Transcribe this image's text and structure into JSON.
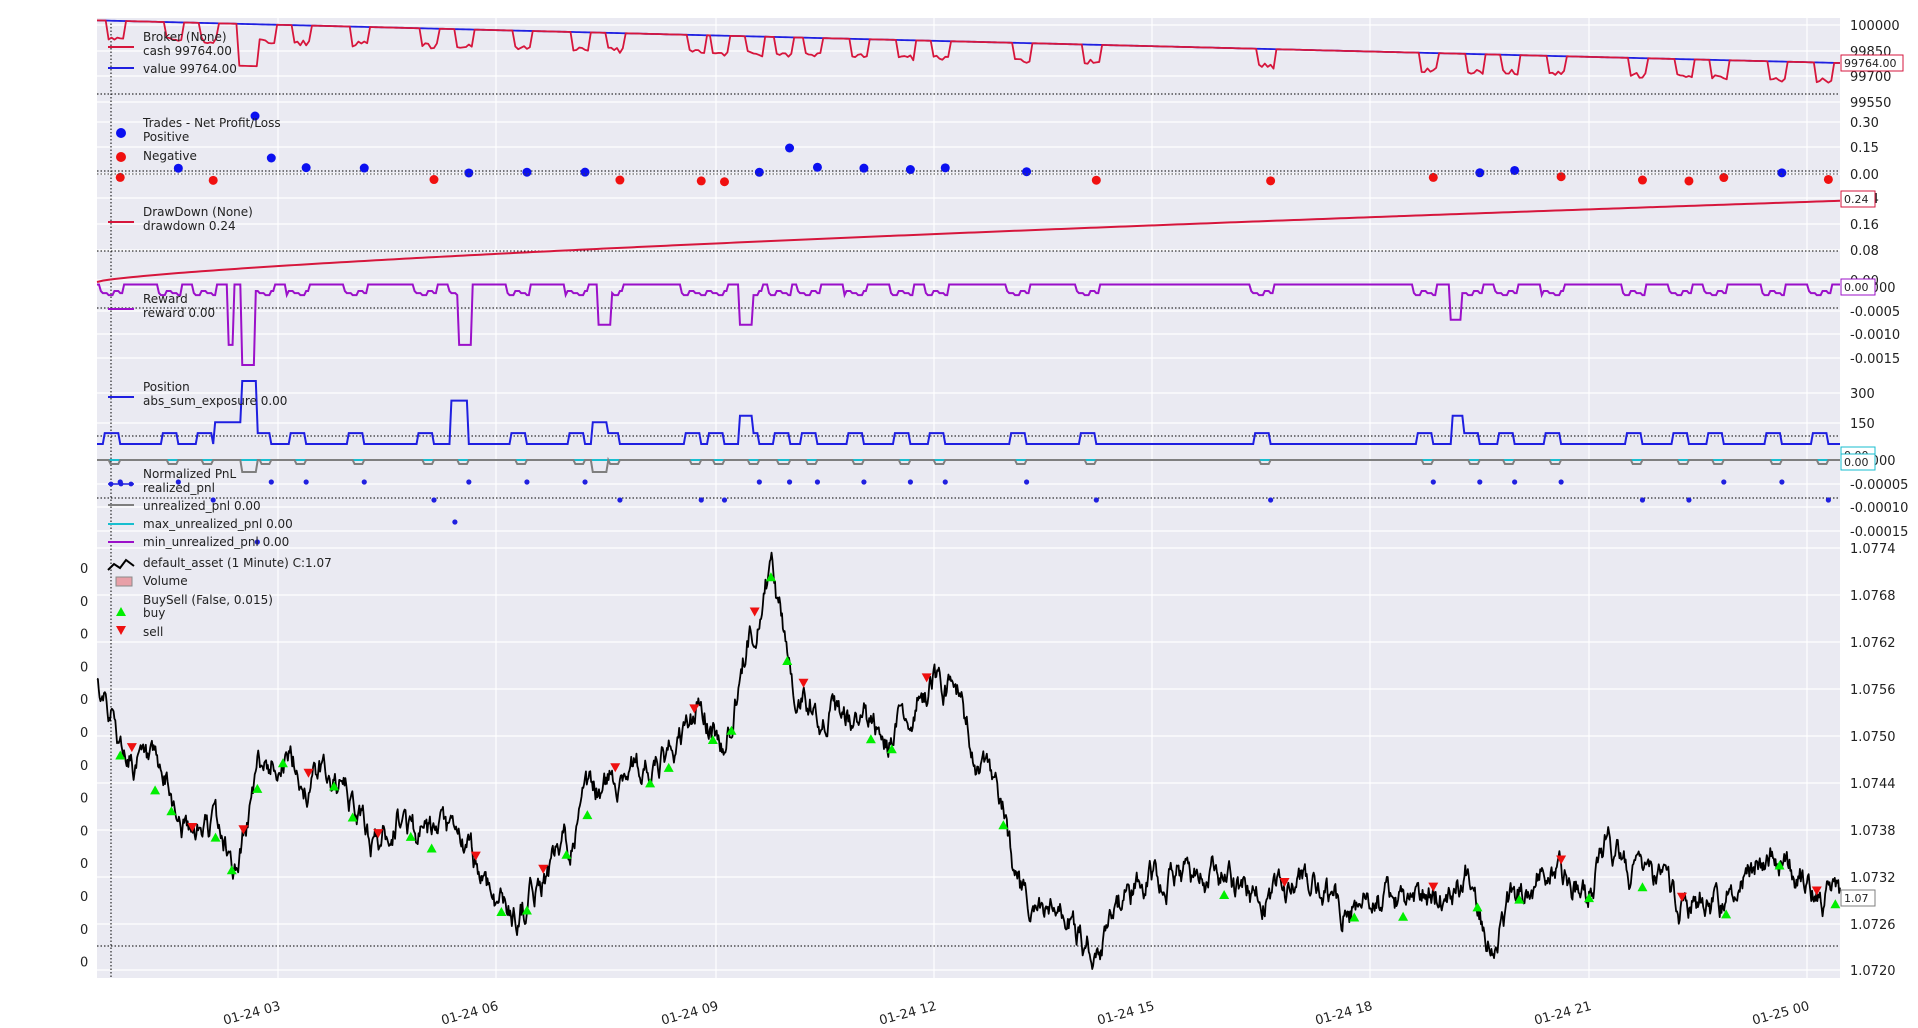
{
  "chart_data": {
    "type": "line",
    "x_ticks": [
      "01-24 03",
      "01-24 06",
      "01-24 09",
      "01-24 12",
      "01-24 15",
      "01-24 18",
      "01-24 21",
      "01-25 00"
    ],
    "panels": [
      {
        "id": "broker",
        "legend_title": "Broker (None)",
        "series": [
          {
            "name": "cash 99764.00",
            "color": "#d6163c",
            "last": 99764.0
          },
          {
            "name": "value 99764.00",
            "color": "#1f1fe0",
            "last": 99764.0
          }
        ],
        "yticks": [
          "100000",
          "99850",
          "99700",
          "99550"
        ],
        "ylim": [
          99550,
          100000
        ],
        "last_label": "99764.00"
      },
      {
        "id": "trades",
        "legend_title": "Trades - Net Profit/Loss",
        "series": [
          {
            "name": "Positive",
            "color": "#0b10f0"
          },
          {
            "name": "Negative",
            "color": "#f01010"
          }
        ],
        "yticks": [
          "0.30",
          "0.15",
          "0.00"
        ],
        "ylim": [
          -0.06,
          0.32
        ]
      },
      {
        "id": "drawdown",
        "legend_title": "DrawDown (None)",
        "series": [
          {
            "name": "drawdown 0.24",
            "color": "#d6163c",
            "last": 0.24
          }
        ],
        "yticks": [
          "0.24",
          "0.16",
          "0.08",
          "0.00"
        ],
        "ylim": [
          0,
          0.26
        ],
        "last_label": "0.24"
      },
      {
        "id": "reward",
        "legend_title": "Reward",
        "series": [
          {
            "name": "reward 0.00",
            "color": "#9b10c9",
            "last": 0.0
          }
        ],
        "yticks": [
          "0.0000",
          "-0.0005",
          "-0.0010",
          "-0.0015"
        ],
        "ylim": [
          -0.0017,
          5e-05
        ],
        "last_label": "0.00"
      },
      {
        "id": "position",
        "legend_title": "Position",
        "series": [
          {
            "name": "abs_sum_exposure 0.00",
            "color": "#1f1fe0",
            "last": 0.0
          }
        ],
        "yticks": [
          "300",
          "150"
        ],
        "ylim": [
          0,
          350
        ],
        "last_label": "0.00"
      },
      {
        "id": "pnl",
        "legend_title": "Normalized PnL",
        "series": [
          {
            "name": "realized_pnl",
            "color": "#1f1fe0"
          },
          {
            "name": "unrealized_pnl 0.00",
            "color": "#7f7f7f"
          },
          {
            "name": "max_unrealized_pnl 0.00",
            "color": "#17becf"
          },
          {
            "name": "min_unrealized_pnl 0.00",
            "color": "#9b10c9"
          }
        ],
        "yticks": [
          "0.0000",
          "-0.00005",
          "-0.00010",
          "-0.00015"
        ],
        "ylim": [
          -0.00017,
          1e-05
        ],
        "last_label": "0.00"
      },
      {
        "id": "price",
        "legend_title": "default_asset (1 Minute) C:1.07",
        "series": [
          {
            "name": "Volume",
            "color": "#e8a0a8"
          },
          {
            "name": "BuySell (False, 0.015)",
            "color": "#000000"
          },
          {
            "name": "buy",
            "color": "#00ee00"
          },
          {
            "name": "sell",
            "color": "#ee1010"
          }
        ],
        "yticks": [
          "1.0774",
          "1.0768",
          "1.0762",
          "1.0756",
          "1.0750",
          "1.0744",
          "1.0738",
          "1.0732",
          "1.0726",
          "1.0720"
        ],
        "left_ticks": [
          "0",
          "0",
          "0",
          "0",
          "0",
          "0",
          "0",
          "0",
          "0",
          "0",
          "0",
          "0",
          "0"
        ],
        "ylim": [
          1.0719,
          1.0775
        ],
        "close": 1.07,
        "last_label": "1.07",
        "price_knots": [
          [
            0,
            1.0757
          ],
          [
            0.3,
            1.0758
          ],
          [
            1,
            1.0749
          ],
          [
            2,
            1.0746
          ],
          [
            3,
            1.0743
          ],
          [
            4,
            1.0737
          ],
          [
            5,
            1.0739
          ],
          [
            6,
            1.0733
          ],
          [
            7,
            1.0746
          ],
          [
            8,
            1.0748
          ],
          [
            9,
            1.0744
          ],
          [
            10,
            1.0746
          ],
          [
            11,
            1.0741
          ],
          [
            12,
            1.0736
          ],
          [
            13,
            1.074
          ],
          [
            14,
            1.0737
          ],
          [
            15,
            1.0737
          ],
          [
            16,
            1.0735
          ],
          [
            17,
            1.073
          ],
          [
            18,
            1.0727
          ],
          [
            19,
            1.0731
          ],
          [
            20,
            1.0735
          ],
          [
            21,
            1.0741
          ],
          [
            22,
            1.0744
          ],
          [
            23,
            1.0747
          ],
          [
            24,
            1.0745
          ],
          [
            25,
            1.0749
          ],
          [
            26,
            1.0754
          ],
          [
            27,
            1.0748
          ],
          [
            28,
            1.0762
          ],
          [
            29,
            1.0772
          ],
          [
            29.5,
            1.0764
          ],
          [
            30,
            1.0757
          ],
          [
            31,
            1.0754
          ],
          [
            32,
            1.0752
          ],
          [
            33,
            1.0752
          ],
          [
            34,
            1.0749
          ],
          [
            35,
            1.0753
          ],
          [
            36,
            1.0758
          ],
          [
            37,
            1.0756
          ],
          [
            38,
            1.0746
          ],
          [
            39,
            1.074
          ],
          [
            40,
            1.0727
          ],
          [
            41,
            1.0727
          ],
          [
            42,
            1.0726
          ],
          [
            43,
            1.0722
          ],
          [
            44,
            1.0728
          ],
          [
            45,
            1.0732
          ],
          [
            46,
            1.0732
          ],
          [
            47,
            1.0732
          ],
          [
            48,
            1.0732
          ],
          [
            49,
            1.073
          ],
          [
            50,
            1.073
          ],
          [
            51,
            1.073
          ],
          [
            52,
            1.0731
          ],
          [
            53,
            1.0729
          ],
          [
            54,
            1.0728
          ],
          [
            55,
            1.0729
          ],
          [
            56,
            1.0728
          ],
          [
            57,
            1.0729
          ],
          [
            58,
            1.073
          ],
          [
            59,
            1.0733
          ],
          [
            60,
            1.0724
          ],
          [
            61,
            1.073
          ],
          [
            62,
            1.0732
          ],
          [
            63,
            1.0733
          ],
          [
            64,
            1.0729
          ],
          [
            65,
            1.0737
          ],
          [
            66,
            1.0733
          ],
          [
            67,
            1.0731
          ],
          [
            68,
            1.0728
          ],
          [
            69,
            1.0729
          ],
          [
            70,
            1.0728
          ],
          [
            71,
            1.0733
          ],
          [
            72,
            1.0736
          ],
          [
            73,
            1.0733
          ],
          [
            74,
            1.0729
          ],
          [
            75,
            1.073
          ]
        ]
      }
    ]
  }
}
